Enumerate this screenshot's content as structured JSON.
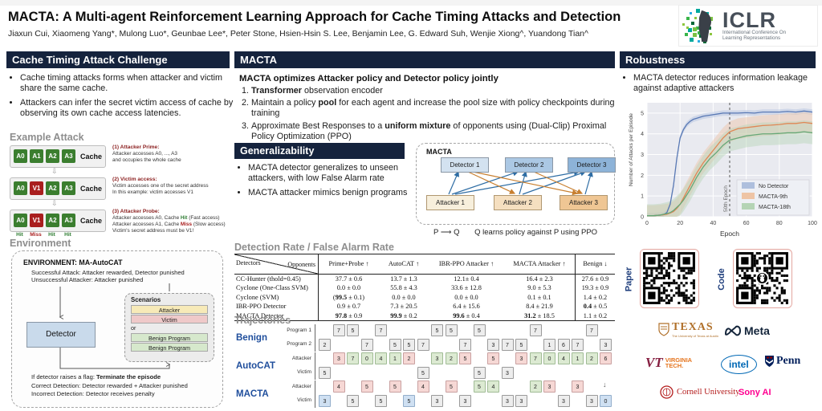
{
  "colors": {
    "navy": "#15233d",
    "green_cell": "#3b7e2f",
    "red_cell": "#a91e1e",
    "traj_blue": "#1f4e9c",
    "sony_pink": "#ff0090"
  },
  "header": {
    "title": "MACTA: A Multi-agent Reinforcement Learning Approach for Cache Timing Attacks and Detection",
    "authors": "Jiaxun Cui, Xiaomeng Yang*, Mulong Luo*, Geunbae Lee*, Peter Stone, Hsien-Hsin S. Lee, Benjamin Lee, G. Edward Suh, Wenjie Xiong^, Yuandong Tian^"
  },
  "iclr": {
    "name": "ICLR",
    "subtitle1": "International Conference On",
    "subtitle2": "Learning Representations"
  },
  "challenge": {
    "title": "Cache Timing Attack Challenge",
    "bullets": [
      "Cache timing attacks forms when attacker and victim share the same cache.",
      "Attackers can infer the secret victim access of cache by observing its own cache access latencies."
    ]
  },
  "example_attack": {
    "title": "Example Attack",
    "cache_label": "Cache",
    "rows": [
      {
        "cells": [
          {
            "label": "A0",
            "type": "green"
          },
          {
            "label": "A1",
            "type": "green"
          },
          {
            "label": "A2",
            "type": "green"
          },
          {
            "label": "A3",
            "type": "green"
          }
        ],
        "note_title": "(1) Attacker Prime:",
        "note_lines": [
          "Attacker accesses A0, ..., A3",
          "and occupies the whole cache"
        ]
      },
      {
        "cells": [
          {
            "label": "A0",
            "type": "green"
          },
          {
            "label": "V1",
            "type": "red"
          },
          {
            "label": "A2",
            "type": "green"
          },
          {
            "label": "A3",
            "type": "green"
          }
        ],
        "note_title": "(2) Victim access:",
        "note_lines": [
          "Victim accesses one of the secret address",
          "In this example: victim accesses V1"
        ]
      },
      {
        "cells": [
          {
            "label": "A0",
            "type": "green"
          },
          {
            "label": "V1",
            "type": "red"
          },
          {
            "label": "A2",
            "type": "green"
          },
          {
            "label": "A3",
            "type": "green"
          }
        ],
        "hits": [
          {
            "label": "Hit",
            "type": "green"
          },
          {
            "label": "Miss",
            "type": "red"
          },
          {
            "label": "Hit",
            "type": "green"
          },
          {
            "label": "Hit",
            "type": "green"
          }
        ],
        "note_title": "(3) Attacker Probe:",
        "note_lines": [
          "Attacker accesses A0, Cache {{g:Hit}} (Fast access)",
          "Attacker accesses A1, Cache {{r:Miss}} (Slow access)",
          "Victim's secret address must be V1!"
        ]
      }
    ]
  },
  "environment": {
    "title": "Environment",
    "box_title": "ENVIRONMENT: MA-AutoCAT",
    "top_lines": [
      "Successful Attack: Attacker rewarded, Detector punished",
      "Unsuccessful Attacker: Attacker punished"
    ],
    "detector_label": "Detector",
    "scenarios": {
      "title": "Scenarios",
      "pair": [
        {
          "label": "Attacker",
          "color": "#f7eab8"
        },
        {
          "label": "Victim",
          "color": "#efc9c9"
        }
      ],
      "or": "or",
      "benign": [
        {
          "label": "Benign Program",
          "color": "#d6e8cc"
        },
        {
          "label": "Benign Program",
          "color": "#d6e8cc"
        }
      ]
    },
    "bottom_lines": [
      "If detector raises a flag: **Terminate the episode**",
      "Correct Detection: Detector rewarded + Attacker punished",
      "Incorrect Detection: Detector receives penalty"
    ]
  },
  "macta": {
    "title": "MACTA",
    "subtitle": "MACTA optimizes Attacker policy and Detector policy jointly",
    "items": [
      "**Transformer** observation encoder",
      "Maintain a policy **pool** for each agent and increase the pool size with policy checkpoints during training",
      "Approximate Best Responses to a **uniform mixture** of opponents using (Dual-Clip) Proximal Policy Optimization (PPO)"
    ]
  },
  "generalizability": {
    "title": "Generalizability",
    "bullets": [
      "MACTA detector generalizes to unseen attackers, with low False Alarm rate",
      "MACTA attacker mimics benign programs"
    ]
  },
  "diagram": {
    "title": "MACTA",
    "detectors": [
      {
        "label": "Detector 1",
        "color": "#d3e2f0"
      },
      {
        "label": "Detector 2",
        "color": "#abc8e4"
      },
      {
        "label": "Detector 3",
        "color": "#8db3d8"
      }
    ],
    "attackers": [
      {
        "label": "Attacker 1",
        "color": "#f7efdc"
      },
      {
        "label": "Attacker 2",
        "color": "#f5dfc0"
      },
      {
        "label": "Attacker 3",
        "color": "#efc694"
      }
    ],
    "pq": {
      "p": "P",
      "arrow": "⟶",
      "q": "Q",
      "caption": "Q learns policy against P using PPO"
    }
  },
  "table": {
    "title": "Detection Rate / False Alarm Rate",
    "corner_top": "Opponents",
    "corner_bottom": "Detectors",
    "columns": [
      "Prime+Probe ↑",
      "AutoCAT ↑",
      "IBR-PPO Attacker ↑",
      "MACTA Attacker ↑",
      "Benign ↓"
    ],
    "rows": [
      {
        "label": "CC-Hunter (thold=0.45)",
        "cells": [
          "37.7 ± 0.6",
          "13.7 ± 1.3",
          "12.1± 0.4",
          "16.4 ± 2.3",
          "27.6 ± 0.9"
        ]
      },
      {
        "label": "Cyclone (One-Class SVM)",
        "cells": [
          "0.0 ± 0.0",
          "55.8 ± 4.3",
          "33.6 ± 12.8",
          "9.0 ± 5.3",
          "19.3 ± 0.9"
        ]
      },
      {
        "label": "Cyclone (SVM)",
        "cells": [
          "(**99.5** ± 0.1)",
          "0.0 ± 0.0",
          "0.0 ± 0.0",
          "0.1 ± 0.1",
          "1.4 ± 0.2"
        ]
      },
      {
        "label": "IBR-PPO Detector",
        "cells": [
          "0.9 ± 0.7",
          "7.3 ± 20.5",
          "6.4 ± 15.6",
          "8.4 ± 21.9",
          "**0.4** ± 0.5"
        ]
      },
      {
        "label": "MACTA Detector",
        "cells": [
          "**97.8** ± 0.9",
          "**99.9** ± 0.2",
          "**99.6** ± 0.4",
          "**31.2** ± 18.5",
          "1.1 ± 0.2"
        ]
      }
    ]
  },
  "trajectories": {
    "title": "Trajectories",
    "groups": [
      {
        "name": "Benign",
        "top_label": "Program 1",
        "bottom_label": "Program 2",
        "arrow_slot": -1,
        "cells": [
          [
            1,
            "2",
            "g"
          ],
          [
            0,
            "7",
            "g"
          ],
          [
            0,
            "5",
            "g"
          ],
          [
            1,
            "7",
            "g"
          ],
          [
            0,
            "7",
            "g"
          ],
          [
            1,
            "5",
            "g"
          ],
          [
            1,
            "5",
            "g"
          ],
          [
            1,
            "7",
            "g"
          ],
          [
            0,
            "5",
            "g"
          ],
          [
            0,
            "5",
            "g"
          ],
          [
            1,
            "7",
            "g"
          ],
          [
            0,
            "5",
            "g"
          ],
          [
            1,
            "3",
            "g"
          ],
          [
            1,
            "7",
            "g"
          ],
          [
            1,
            "5",
            "g"
          ],
          [
            0,
            "7",
            "g"
          ],
          [
            1,
            "1",
            "g"
          ],
          [
            1,
            "6",
            "g"
          ],
          [
            1,
            "7",
            "g"
          ],
          [
            0,
            "7",
            "g"
          ],
          [
            1,
            "3",
            "g"
          ]
        ]
      },
      {
        "name": "AutoCAT",
        "top_label": "Attacker",
        "bottom_label": "Victim",
        "arrow_slot": -1,
        "cells": [
          [
            1,
            "5",
            "g"
          ],
          [
            0,
            "3",
            "p"
          ],
          [
            0,
            "7",
            "n"
          ],
          [
            0,
            "0",
            "n"
          ],
          [
            0,
            "4",
            "n"
          ],
          [
            0,
            "1",
            "n"
          ],
          [
            0,
            "2",
            "p"
          ],
          [
            1,
            "5",
            "g"
          ],
          [
            0,
            "3",
            "n"
          ],
          [
            0,
            "2",
            "n"
          ],
          [
            0,
            "5",
            "p"
          ],
          [
            1,
            "5",
            "g"
          ],
          [
            0,
            "5",
            "p"
          ],
          [
            1,
            "3",
            "g"
          ],
          [
            0,
            "3",
            "p"
          ],
          [
            0,
            "7",
            "n"
          ],
          [
            0,
            "0",
            "n"
          ],
          [
            0,
            "4",
            "n"
          ],
          [
            0,
            "1",
            "n"
          ],
          [
            0,
            "2",
            "n"
          ],
          [
            0,
            "6",
            "p"
          ]
        ]
      },
      {
        "name": "MACTA",
        "top_label": "Attacker",
        "bottom_label": "Victim",
        "arrow_slot": 20,
        "cells": [
          [
            1,
            "3",
            "b"
          ],
          [
            0,
            "4",
            "p"
          ],
          [
            1,
            "5",
            "g"
          ],
          [
            0,
            "5",
            "p"
          ],
          [
            1,
            "5",
            "g"
          ],
          [
            0,
            "5",
            "p"
          ],
          [
            1,
            "5",
            "b"
          ],
          [
            0,
            "4",
            "p"
          ],
          [
            1,
            "3",
            "g"
          ],
          [
            0,
            "5",
            "p"
          ],
          [
            1,
            "3",
            "g"
          ],
          [
            0,
            "5",
            "n"
          ],
          [
            0,
            "4",
            "n"
          ],
          [
            1,
            "3",
            "g"
          ],
          [
            1,
            "3",
            "g"
          ],
          [
            0,
            "2",
            "n"
          ],
          [
            0,
            "3",
            "p"
          ],
          [
            1,
            "3",
            "g"
          ],
          [
            0,
            "3",
            "p"
          ],
          [
            1,
            "3",
            "g"
          ],
          [
            1,
            "0",
            "b"
          ]
        ]
      }
    ]
  },
  "robustness": {
    "title": "Robustness",
    "bullets": [
      "MACTA detector reduces information leakage against adaptive attackers"
    ]
  },
  "chart_data": {
    "type": "line",
    "title": "",
    "xlabel": "Epoch",
    "ylabel": "Number of Attacks per Episode",
    "xlim": [
      0,
      100
    ],
    "ylim": [
      0,
      5.5
    ],
    "xticks": [
      0,
      20,
      40,
      60,
      80,
      100
    ],
    "yticks": [
      0,
      1,
      2,
      3,
      4,
      5
    ],
    "annotation": {
      "x": 50,
      "label": "50th Epoch"
    },
    "legend_position": "lower right",
    "grid": true,
    "x": [
      0,
      4,
      8,
      10,
      12,
      14,
      16,
      18,
      20,
      22,
      24,
      26,
      28,
      30,
      34,
      38,
      42,
      46,
      50,
      55,
      60,
      65,
      70,
      75,
      80,
      85,
      90,
      95,
      100
    ],
    "series": [
      {
        "name": "No Detector",
        "color": "#5878b4",
        "band_color": "#aebfdd",
        "band": 0.13,
        "values": [
          0.05,
          0.05,
          0.08,
          0.1,
          0.2,
          0.6,
          1.5,
          2.8,
          3.8,
          4.2,
          4.45,
          4.6,
          4.7,
          4.75,
          4.85,
          4.9,
          4.95,
          5.0,
          5.0,
          5.0,
          5.02,
          5.0,
          5.05,
          5.05,
          5.05,
          5.08,
          5.05,
          5.1,
          5.05
        ]
      },
      {
        "name": "MACTA-9th",
        "color": "#e08654",
        "band_color": "#eec4a5",
        "band": 0.5,
        "values": [
          0.05,
          0.05,
          0.08,
          0.1,
          0.12,
          0.18,
          0.25,
          0.4,
          0.6,
          0.9,
          1.2,
          1.5,
          1.8,
          2.1,
          2.6,
          3.0,
          3.4,
          3.8,
          4.1,
          4.25,
          4.3,
          4.35,
          4.4,
          4.42,
          4.45,
          4.5,
          4.5,
          4.55,
          4.5
        ]
      },
      {
        "name": "MACTA-18th",
        "color": "#66a877",
        "band_color": "#b5d4b5",
        "band": 0.55,
        "values": [
          0.05,
          0.05,
          0.08,
          0.12,
          0.15,
          0.2,
          0.3,
          0.45,
          0.6,
          0.8,
          1.05,
          1.3,
          1.6,
          1.9,
          2.4,
          2.8,
          3.1,
          3.45,
          3.7,
          3.8,
          3.9,
          3.95,
          4.0,
          4.0,
          4.02,
          4.05,
          4.05,
          4.1,
          4.05
        ]
      }
    ]
  },
  "links": {
    "paper": "Paper",
    "code": "Code"
  },
  "logos": {
    "texas": "TEXAS",
    "texas_sub": "The University of Texas at Austin",
    "meta": "Meta",
    "vt_line1": "VIRGINIA",
    "vt_line2": "TECH.",
    "vt_mark": "VT",
    "intel": "intel",
    "penn": "Penn",
    "cornell": "Cornell University",
    "sony": "Sony AI"
  }
}
